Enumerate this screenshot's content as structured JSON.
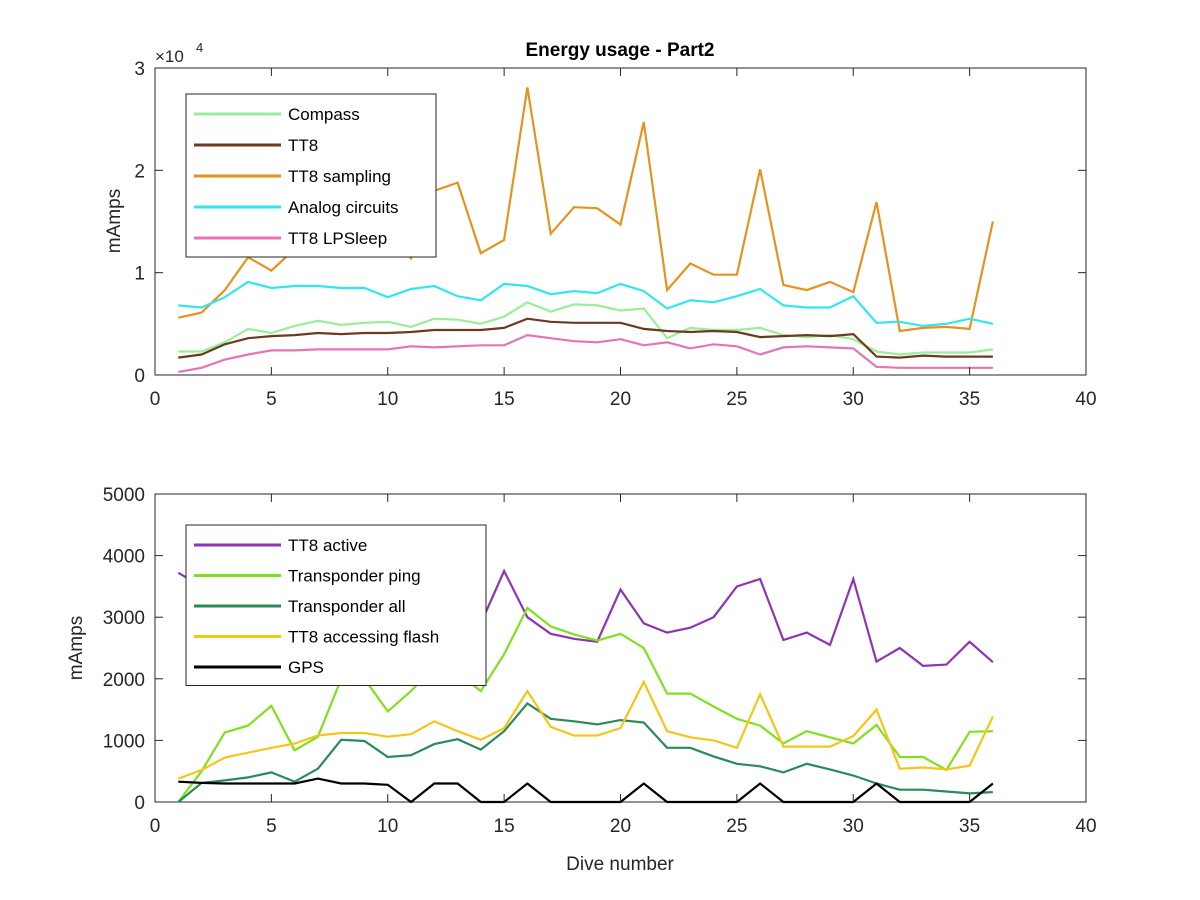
{
  "figure": {
    "title": "Energy usage - Part2",
    "xlabel": "Dive number"
  },
  "chart_data": [
    {
      "type": "line",
      "title": "Energy usage - Part2",
      "xlabel": "",
      "ylabel": "mAmps",
      "y_exponent": "×10^4",
      "exponent_base": "×10",
      "exponent_power": "4",
      "xlim": [
        0,
        40
      ],
      "ylim": [
        0,
        30000
      ],
      "xticks": [
        0,
        5,
        10,
        15,
        20,
        25,
        30,
        35,
        40
      ],
      "yticks": [
        0,
        10000,
        20000,
        30000
      ],
      "ytick_labels": [
        "0",
        "1",
        "2",
        "3"
      ],
      "grid": false,
      "legend_position": "top-left",
      "series": [
        {
          "name": "Compass",
          "color": "#99ee99",
          "x": [
            1,
            2,
            3,
            4,
            5,
            6,
            7,
            8,
            9,
            10,
            11,
            12,
            13,
            14,
            15,
            16,
            17,
            18,
            19,
            20,
            21,
            22,
            23,
            24,
            25,
            26,
            27,
            28,
            29,
            30,
            31,
            32,
            33,
            34,
            35,
            36
          ],
          "y": [
            2300,
            2300,
            3200,
            4500,
            4100,
            4800,
            5300,
            4900,
            5100,
            5200,
            4700,
            5500,
            5400,
            5000,
            5700,
            7100,
            6200,
            6900,
            6800,
            6300,
            6500,
            3600,
            4600,
            4400,
            4400,
            4600,
            3900,
            3700,
            3900,
            3500,
            2300,
            2000,
            2200,
            2200,
            2200,
            2500
          ]
        },
        {
          "name": "TT8",
          "color": "#6b3a1f",
          "x": [
            1,
            2,
            3,
            4,
            5,
            6,
            7,
            8,
            9,
            10,
            11,
            12,
            13,
            14,
            15,
            16,
            17,
            18,
            19,
            20,
            21,
            22,
            23,
            24,
            25,
            26,
            27,
            28,
            29,
            30,
            31,
            32,
            33,
            34,
            35,
            36
          ],
          "y": [
            1700,
            2000,
            3000,
            3600,
            3800,
            3900,
            4100,
            4000,
            4100,
            4100,
            4200,
            4400,
            4400,
            4400,
            4600,
            5500,
            5200,
            5100,
            5100,
            5100,
            4500,
            4300,
            4200,
            4300,
            4200,
            3700,
            3800,
            3900,
            3800,
            4000,
            1800,
            1700,
            1900,
            1800,
            1800,
            1800
          ]
        },
        {
          "name": "TT8 sampling",
          "color": "#e6921e",
          "x": [
            1,
            2,
            3,
            4,
            5,
            6,
            7,
            8,
            9,
            10,
            11,
            12,
            13,
            14,
            15,
            16,
            17,
            18,
            19,
            20,
            21,
            22,
            23,
            24,
            25,
            26,
            27,
            28,
            29,
            30,
            31,
            32,
            33,
            34,
            35,
            36
          ],
          "y": [
            5600,
            6100,
            8300,
            11500,
            10200,
            12300,
            12800,
            13500,
            12900,
            13800,
            11400,
            18000,
            18800,
            11900,
            13200,
            28100,
            13800,
            16400,
            16300,
            14700,
            24700,
            8300,
            10900,
            9800,
            9800,
            20100,
            8800,
            8300,
            9100,
            8100,
            16900,
            4300,
            4600,
            4700,
            4500,
            15000
          ]
        },
        {
          "name": "Analog circuits",
          "color": "#33e6ee",
          "x": [
            1,
            2,
            3,
            4,
            5,
            6,
            7,
            8,
            9,
            10,
            11,
            12,
            13,
            14,
            15,
            16,
            17,
            18,
            19,
            20,
            21,
            22,
            23,
            24,
            25,
            26,
            27,
            28,
            29,
            30,
            31,
            32,
            33,
            34,
            35,
            36
          ],
          "y": [
            6800,
            6600,
            7600,
            9100,
            8500,
            8700,
            8700,
            8500,
            8500,
            7600,
            8400,
            8700,
            7700,
            7300,
            8900,
            8700,
            7900,
            8200,
            8000,
            8900,
            8200,
            6500,
            7300,
            7100,
            7700,
            8400,
            6800,
            6600,
            6600,
            7700,
            5100,
            5200,
            4800,
            5000,
            5500,
            5000
          ]
        },
        {
          "name": "TT8 LPSleep",
          "color": "#e673b3",
          "x": [
            1,
            2,
            3,
            4,
            5,
            6,
            7,
            8,
            9,
            10,
            11,
            12,
            13,
            14,
            15,
            16,
            17,
            18,
            19,
            20,
            21,
            22,
            23,
            24,
            25,
            26,
            27,
            28,
            29,
            30,
            31,
            32,
            33,
            34,
            35,
            36
          ],
          "y": [
            300,
            700,
            1500,
            2000,
            2400,
            2400,
            2500,
            2500,
            2500,
            2500,
            2800,
            2700,
            2800,
            2900,
            2900,
            3900,
            3600,
            3300,
            3200,
            3500,
            2900,
            3200,
            2600,
            3000,
            2800,
            2000,
            2700,
            2800,
            2700,
            2600,
            800,
            700,
            700,
            700,
            700,
            700
          ]
        }
      ]
    },
    {
      "type": "line",
      "title": "",
      "xlabel": "Dive number",
      "ylabel": "mAmps",
      "xlim": [
        0,
        40
      ],
      "ylim": [
        0,
        5000
      ],
      "xticks": [
        0,
        5,
        10,
        15,
        20,
        25,
        30,
        35,
        40
      ],
      "yticks": [
        0,
        1000,
        2000,
        3000,
        4000,
        5000
      ],
      "ytick_labels": [
        "0",
        "1000",
        "2000",
        "3000",
        "4000",
        "5000"
      ],
      "grid": false,
      "legend_position": "top-left",
      "series": [
        {
          "name": "TT8 active",
          "color": "#8c35b5",
          "x": [
            1,
            2,
            3,
            4,
            5,
            6,
            7,
            8,
            9,
            10,
            11,
            12,
            13,
            14,
            15,
            16,
            17,
            18,
            19,
            20,
            21,
            22,
            23,
            24,
            25,
            26,
            27,
            28,
            29,
            30,
            31,
            32,
            33,
            34,
            35,
            36
          ],
          "y": [
            3720,
            3500,
            3300,
            3200,
            3100,
            3000,
            3100,
            3300,
            3350,
            3000,
            3100,
            3400,
            3500,
            2900,
            3750,
            3000,
            2730,
            2650,
            2600,
            3450,
            2900,
            2750,
            2830,
            3000,
            3500,
            3620,
            2630,
            2750,
            2550,
            3620,
            2280,
            2500,
            2210,
            2230,
            2600,
            2270
          ]
        },
        {
          "name": "Transponder ping",
          "color": "#80e020",
          "x": [
            1,
            2,
            3,
            4,
            5,
            6,
            7,
            8,
            9,
            10,
            11,
            12,
            13,
            14,
            15,
            16,
            17,
            18,
            19,
            20,
            21,
            22,
            23,
            24,
            25,
            26,
            27,
            28,
            29,
            30,
            31,
            32,
            33,
            34,
            35,
            36
          ],
          "y": [
            0,
            500,
            1130,
            1240,
            1560,
            840,
            1060,
            2000,
            2000,
            1470,
            1800,
            2200,
            2100,
            1800,
            2400,
            3150,
            2850,
            2720,
            2620,
            2730,
            2500,
            1760,
            1760,
            1550,
            1350,
            1240,
            950,
            1150,
            1050,
            950,
            1250,
            730,
            730,
            520,
            1140,
            1150
          ]
        },
        {
          "name": "Transponder all",
          "color": "#2a8a5a",
          "x": [
            1,
            2,
            3,
            4,
            5,
            6,
            7,
            8,
            9,
            10,
            11,
            12,
            13,
            14,
            15,
            16,
            17,
            18,
            19,
            20,
            21,
            22,
            23,
            24,
            25,
            26,
            27,
            28,
            29,
            30,
            31,
            32,
            33,
            34,
            35,
            36
          ],
          "y": [
            0,
            310,
            350,
            400,
            480,
            330,
            540,
            1010,
            990,
            730,
            760,
            940,
            1020,
            850,
            1150,
            1600,
            1350,
            1310,
            1260,
            1330,
            1290,
            880,
            880,
            740,
            620,
            580,
            480,
            620,
            530,
            430,
            300,
            200,
            200,
            170,
            140,
            160
          ]
        },
        {
          "name": "TT8 accessing flash",
          "color": "#f5c518",
          "x": [
            1,
            2,
            3,
            4,
            5,
            6,
            7,
            8,
            9,
            10,
            11,
            12,
            13,
            14,
            15,
            16,
            17,
            18,
            19,
            20,
            21,
            22,
            23,
            24,
            25,
            26,
            27,
            28,
            29,
            30,
            31,
            32,
            33,
            34,
            35,
            36
          ],
          "y": [
            380,
            520,
            720,
            800,
            880,
            950,
            1080,
            1120,
            1120,
            1060,
            1100,
            1310,
            1150,
            1010,
            1200,
            1800,
            1220,
            1080,
            1080,
            1200,
            1950,
            1150,
            1050,
            1000,
            880,
            1750,
            900,
            900,
            900,
            1070,
            1500,
            540,
            560,
            530,
            590,
            1390
          ]
        },
        {
          "name": "GPS",
          "color": "#000000",
          "x": [
            1,
            2,
            3,
            4,
            5,
            6,
            7,
            8,
            9,
            10,
            11,
            12,
            13,
            14,
            15,
            16,
            17,
            18,
            19,
            20,
            21,
            22,
            23,
            24,
            25,
            26,
            27,
            28,
            29,
            30,
            31,
            32,
            33,
            34,
            35,
            36
          ],
          "y": [
            330,
            310,
            300,
            300,
            300,
            300,
            380,
            300,
            300,
            280,
            0,
            300,
            300,
            0,
            0,
            300,
            0,
            0,
            0,
            0,
            300,
            0,
            0,
            0,
            0,
            300,
            0,
            0,
            0,
            0,
            300,
            0,
            0,
            0,
            0,
            300
          ]
        }
      ]
    }
  ]
}
